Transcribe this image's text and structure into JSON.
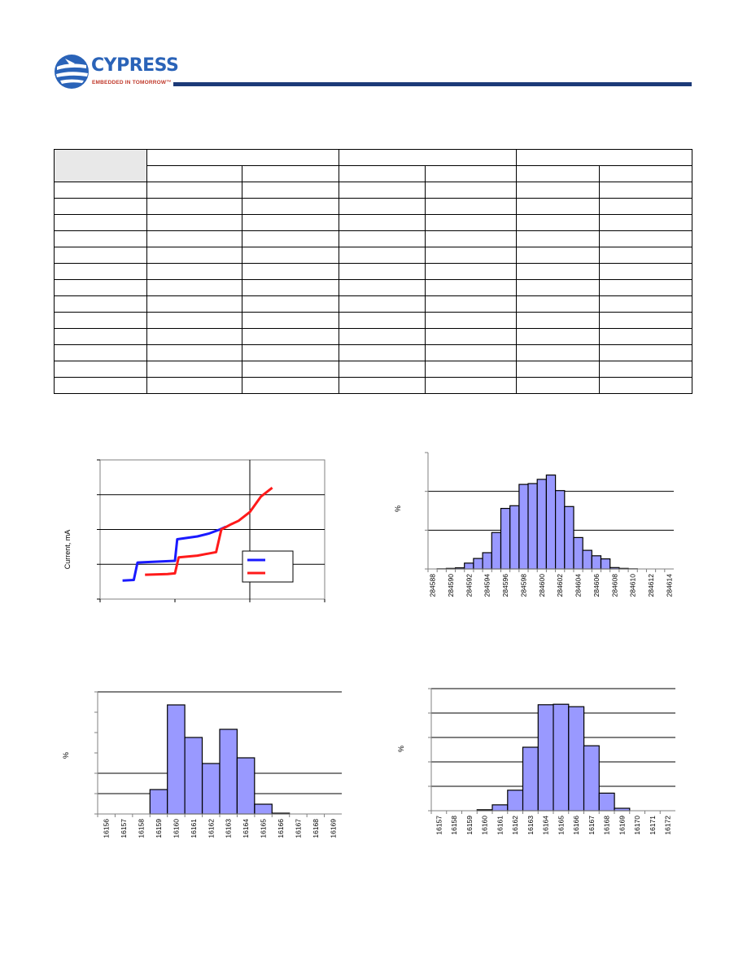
{
  "brand": {
    "name": "CYPRESS",
    "tagline": "EMBEDDED IN TOMORROW™",
    "accent": "#2a63b8",
    "tag_color": "#c0392b",
    "rule_color": "#1c3a78"
  },
  "table": {
    "rows": 13,
    "cols": 7,
    "header_fill": "#e8e8e8"
  },
  "charts": {
    "current": {
      "ylabel": "Current,  mA",
      "series_colors": [
        "#1a1aff",
        "#ff1a1a"
      ]
    },
    "hist_a": {
      "ylabel": "%",
      "bar_color": "#9999ff"
    },
    "hist_b": {
      "ylabel": "%",
      "bar_color": "#9999ff"
    },
    "hist_c": {
      "ylabel": "%",
      "bar_color": "#9999ff"
    }
  },
  "chart_data": [
    {
      "type": "line",
      "title": "",
      "xlabel": "",
      "ylabel": "Current,  mA",
      "grid": true,
      "legend": "bottom-right",
      "series": [
        {
          "color": "#1a1aff",
          "points": [
            [
              0.3,
              -0.47
            ],
            [
              0.45,
              -0.45
            ],
            [
              0.5,
              0.05
            ],
            [
              0.7,
              0.07
            ],
            [
              1.0,
              0.1
            ],
            [
              1.03,
              0.72
            ],
            [
              1.3,
              0.8
            ],
            [
              1.45,
              0.88
            ],
            [
              1.6,
              1.0
            ],
            [
              1.68,
              1.08
            ]
          ]
        },
        {
          "color": "#ff1a1a",
          "points": [
            [
              0.6,
              -0.3
            ],
            [
              0.9,
              -0.28
            ],
            [
              1.0,
              -0.26
            ],
            [
              1.05,
              0.2
            ],
            [
              1.3,
              0.25
            ],
            [
              1.55,
              0.35
            ],
            [
              1.62,
              1.0
            ],
            [
              1.75,
              1.15
            ],
            [
              1.85,
              1.25
            ],
            [
              2.0,
              1.5
            ],
            [
              2.15,
              1.95
            ],
            [
              2.3,
              2.2
            ]
          ]
        }
      ]
    },
    {
      "type": "bar",
      "title": "",
      "xlabel": "",
      "ylabel": "%",
      "grid": true,
      "categories": [
        "284588",
        "",
        "284590",
        "",
        "284592",
        "",
        "284594",
        "",
        "284596",
        "",
        "284598",
        "",
        "284600",
        "",
        "284602",
        "",
        "284604",
        "",
        "284606",
        "",
        "284608",
        "",
        "284610",
        "",
        "284612",
        "",
        "284614"
      ],
      "values": [
        0,
        0.05,
        0.15,
        0.3,
        1.5,
        2.7,
        4.2,
        9.4,
        15.6,
        16.3,
        21.8,
        22.0,
        23.1,
        24.2,
        20.2,
        16.1,
        8.1,
        4.8,
        3.4,
        2.6,
        0.35,
        0.15,
        0.05,
        0,
        0,
        0,
        0
      ]
    },
    {
      "type": "bar",
      "title": "",
      "xlabel": "",
      "ylabel": "%",
      "grid": true,
      "categories": [
        "16156",
        "16157",
        "16158",
        "16159",
        "16160",
        "16161",
        "16162",
        "16163",
        "16164",
        "16165",
        "16166",
        "16167",
        "16168",
        "16169"
      ],
      "values": [
        0,
        0,
        0,
        6.0,
        26.8,
        18.8,
        12.4,
        20.8,
        13.8,
        2.4,
        0.2,
        0,
        0,
        0
      ]
    },
    {
      "type": "bar",
      "title": "",
      "xlabel": "",
      "ylabel": "%",
      "grid": true,
      "categories": [
        "16157",
        "16158",
        "16159",
        "16160",
        "16161",
        "16162",
        "16163",
        "16164",
        "16165",
        "16166",
        "16167",
        "16168",
        "16169",
        "16170",
        "16171",
        "16172"
      ],
      "values": [
        0,
        0,
        0,
        0.2,
        1.2,
        4.2,
        13.0,
        21.7,
        21.8,
        21.3,
        13.3,
        3.6,
        0.5,
        0,
        0,
        0
      ]
    }
  ]
}
